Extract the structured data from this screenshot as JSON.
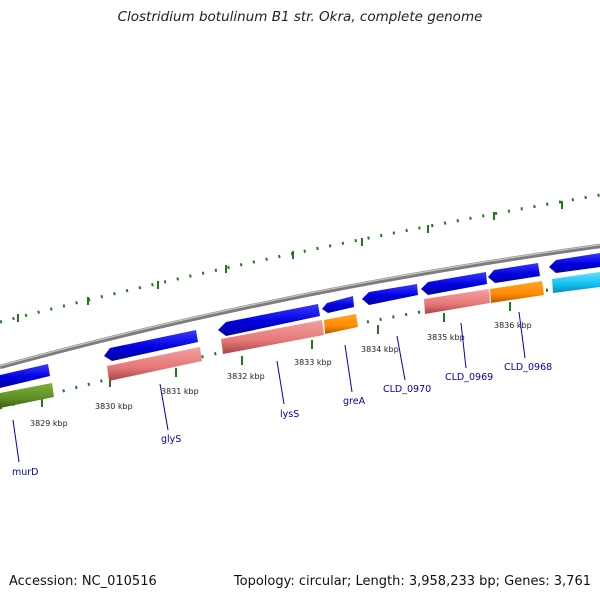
{
  "title": "Clostridium botulinum B1 str. Okra, complete genome",
  "footer": {
    "accession": "Accession: NC_010516",
    "summary": "Topology: circular; Length: 3,958,233 bp; Genes: 3,761"
  },
  "scale_labels": [
    "3829 kbp",
    "3830 kbp",
    "3831 kbp",
    "3832 kbp",
    "3833 kbp",
    "3834 kbp",
    "3835 kbp",
    "3836 kbp"
  ],
  "gene_labels": [
    "murD",
    "glyS",
    "lysS",
    "greA",
    "CLD_0970",
    "CLD_0969",
    "CLD_0968"
  ],
  "colors": {
    "backbone": "#8a8a8a",
    "cds": "#0000e6",
    "trna_synthetase": "#e98080",
    "other": "#ff8c00",
    "cell_division": "#6a9a2a",
    "hypothetical": "#12c8f5",
    "tick": "#1e7a1e",
    "label": "#0000b8"
  }
}
